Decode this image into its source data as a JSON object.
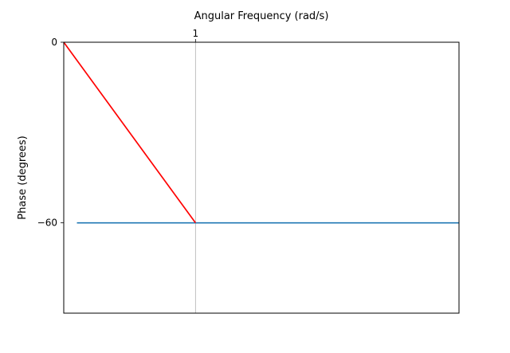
{
  "chart_data": {
    "type": "line",
    "title": "",
    "xlabel": "Angular Frequency (rad/s)",
    "ylabel": "Phase (degrees)",
    "xlim": [
      0,
      3
    ],
    "ylim": [
      -90,
      0
    ],
    "x_ticks": [
      {
        "value": 1,
        "label": "1"
      }
    ],
    "y_ticks": [
      {
        "value": 0,
        "label": "0"
      },
      {
        "value": -60,
        "label": "−60"
      }
    ],
    "grid": true,
    "series": [
      {
        "color": "#1f77b4",
        "x": [
          0.1,
          3
        ],
        "y": [
          -60,
          -60
        ]
      },
      {
        "color": "#ff0000",
        "x": [
          0,
          1
        ],
        "y": [
          0,
          -60
        ]
      }
    ]
  }
}
